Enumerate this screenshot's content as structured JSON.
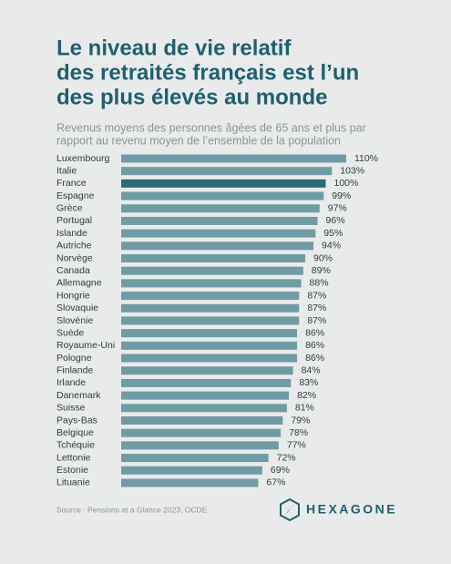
{
  "chart_data": {
    "type": "bar",
    "orientation": "horizontal",
    "title": [
      "Le niveau de vie relatif",
      "des retraités français est l’un",
      "des plus élevés au monde"
    ],
    "subtitle": [
      "Revenus moyens des personnes âgées de 65 ans et plus par",
      "rapport au revenu moyen de l’ensemble de la population"
    ],
    "categories": [
      "Luxembourg",
      "Italie",
      "France",
      "Espagne",
      "Grèce",
      "Portugal",
      "Islande",
      "Autriche",
      "Norvège",
      "Canada",
      "Allemagne",
      "Hongrie",
      "Slovaquie",
      "Slovénie",
      "Suède",
      "Royaume-Uni",
      "Pologne",
      "Finlande",
      "Irlande",
      "Danemark",
      "Suisse",
      "Pays-Bas",
      "Belgique",
      "Tchéquie",
      "Lettonie",
      "Estonie",
      "Lituanie"
    ],
    "values": [
      110,
      103,
      100,
      99,
      97,
      96,
      95,
      94,
      90,
      89,
      88,
      87,
      87,
      87,
      86,
      86,
      86,
      84,
      83,
      82,
      81,
      79,
      78,
      77,
      72,
      69,
      67
    ],
    "value_labels": [
      "110%",
      "103%",
      "100%",
      "99%",
      "97%",
      "96%",
      "95%",
      "94%",
      "90%",
      "89%",
      "88%",
      "87%",
      "87%",
      "87%",
      "86%",
      "86%",
      "86%",
      "84%",
      "83%",
      "82%",
      "81%",
      "79%",
      "78%",
      "77%",
      "72%",
      "69%",
      "67%"
    ],
    "colors": [
      "#6f9ba5",
      "#6f9ba5",
      "#2c6a7a",
      "#6f9ba5",
      "#6f9ba5",
      "#6f9ba5",
      "#6f9ba5",
      "#6f9ba5",
      "#6f9ba5",
      "#6f9ba5",
      "#6f9ba5",
      "#6f9ba5",
      "#6f9ba5",
      "#6f9ba5",
      "#6f9ba5",
      "#6f9ba5",
      "#6f9ba5",
      "#6f9ba5",
      "#6f9ba5",
      "#6f9ba5",
      "#6f9ba5",
      "#6f9ba5",
      "#6f9ba5",
      "#6f9ba5",
      "#6f9ba5",
      "#6f9ba5",
      "#6f9ba5"
    ],
    "source": "Source : Pensions at a Glance 2023, OCDE",
    "logo": "HEXAGONE"
  }
}
